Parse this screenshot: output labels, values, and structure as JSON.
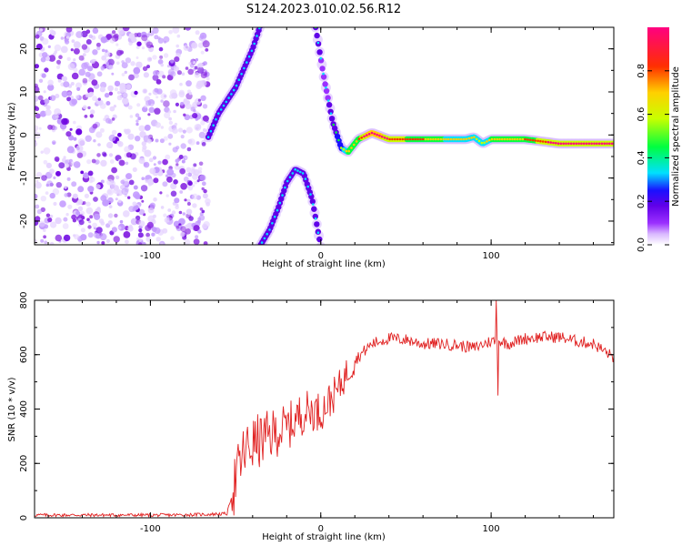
{
  "title": "S124.2023.010.02.56.R12",
  "chart_data": [
    {
      "type": "heatmap",
      "xlabel": "Height of straight line (km)",
      "ylabel": "Frequency (Hz)",
      "xlim": [
        -168,
        172
      ],
      "ylim": [
        -25.5,
        25
      ],
      "x_ticks": [
        -100,
        0,
        100
      ],
      "y_ticks": [
        20,
        10,
        0,
        -10,
        -20
      ],
      "colormap": [
        "#ffffff",
        "#d9b8ff",
        "#9b30ff",
        "#6000e8",
        "#1a10ff",
        "#00e0ff",
        "#00ff40",
        "#c8ff00",
        "#ffd000",
        "#ff3000",
        "#ff0080"
      ],
      "colorbar": {
        "label": "Normalized spectral amplitude",
        "range": [
          0,
          1
        ],
        "ticks": [
          0.0,
          0.2,
          0.4,
          0.6,
          0.8
        ]
      },
      "noise_region": {
        "x_from": -168,
        "x_to": -66,
        "amplitude": 0.1
      },
      "ridges": [
        {
          "x": [
            -66,
            -60,
            -50,
            -40,
            -35
          ],
          "y": [
            -0.5,
            5,
            11,
            20,
            26
          ],
          "amplitude": 0.25
        },
        {
          "x": [
            -3,
            2,
            7,
            12,
            16,
            22,
            30,
            40,
            60,
            85,
            90,
            95,
            100,
            120,
            140,
            172
          ],
          "y": [
            25,
            13,
            3,
            -3,
            -4,
            -1,
            0.5,
            -1,
            -1,
            -1,
            -0.5,
            -2,
            -1,
            -1,
            -2,
            -2
          ],
          "amplitude": [
            0.3,
            0.2,
            0.3,
            0.4,
            0.55,
            0.6,
            0.85,
            0.7,
            0.6,
            0.5,
            0.5,
            0.45,
            0.55,
            0.6,
            0.75,
            0.7
          ]
        },
        {
          "x": [
            -36,
            -30,
            -25,
            -20,
            -15,
            -10,
            -5,
            0
          ],
          "y": [
            -26,
            -22,
            -17,
            -11,
            -8,
            -9,
            -15,
            -26
          ],
          "amplitude": 0.25
        }
      ]
    },
    {
      "type": "line",
      "xlabel": "Height of straight line (km)",
      "ylabel": "SNR (10 * v/v)",
      "xlim": [
        -168,
        172
      ],
      "ylim": [
        0,
        800
      ],
      "x_ticks": [
        -100,
        0,
        100
      ],
      "y_ticks": [
        0,
        200,
        400,
        600,
        800
      ],
      "color": "#e02020",
      "anchor_x": [
        -168,
        -90,
        -70,
        -55,
        -50,
        -45,
        -40,
        -35,
        -30,
        -25,
        -20,
        -15,
        -10,
        -5,
        0,
        5,
        10,
        15,
        20,
        25,
        30,
        40,
        50,
        60,
        70,
        80,
        90,
        100,
        105,
        110,
        120,
        130,
        140,
        150,
        160,
        172
      ],
      "anchor_y": [
        10,
        10,
        12,
        15,
        140,
        240,
        270,
        285,
        300,
        320,
        330,
        360,
        390,
        395,
        390,
        430,
        470,
        530,
        580,
        610,
        640,
        660,
        655,
        640,
        640,
        635,
        625,
        650,
        650,
        640,
        660,
        665,
        665,
        650,
        640,
        590
      ],
      "spikes": [
        {
          "x": 103,
          "y": 800
        },
        {
          "x": 104,
          "y": 450
        }
      ]
    }
  ]
}
